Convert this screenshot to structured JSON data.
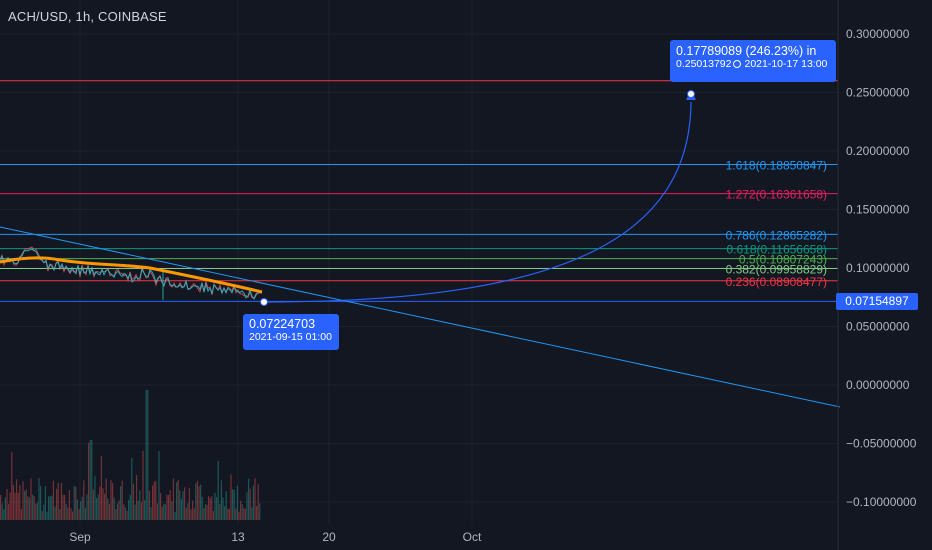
{
  "header": {
    "symbol_title": "ACH/USD, 1h, COINBASE"
  },
  "current_price": {
    "label": "0.07154897",
    "value": 0.07154897,
    "color": "#2962ff"
  },
  "callout_target": {
    "value": "0.17789089 (246.23%) in",
    "price": "0.25013792",
    "date": "2021-10-17 13:00",
    "y": 0.25013792
  },
  "callout_low": {
    "price": "0.07224703",
    "date": "2021-09-15 01:00",
    "y": 0.07224703
  },
  "chart_data": {
    "type": "line",
    "title": "ACH/USD, 1h, COINBASE",
    "ylim": [
      -0.115,
      0.31
    ],
    "x_ticks": [
      "Sep",
      "13",
      "20",
      "Oct"
    ],
    "y_ticks": [
      "0.30000000",
      "0.25000000",
      "0.20000000",
      "0.15000000",
      "0.10000000",
      "0.05000000",
      "0.00000000",
      "−0.05000000",
      "−0.10000000"
    ],
    "y_tick_values": [
      0.3,
      0.25,
      0.2,
      0.15,
      0.1,
      0.05,
      0.0,
      -0.05,
      -0.1
    ],
    "horizontal_levels": [
      {
        "value": 0.26,
        "color": "#f23645"
      },
      {
        "value": 0.1885,
        "color": "#2196f3",
        "label": "1.618(0.18850847)"
      },
      {
        "value": 0.1636,
        "color": "#e91e63",
        "label": "1.272(0.16361658)"
      },
      {
        "value": 0.1287,
        "color": "#2196f3",
        "label": "0.786(0.12865282)"
      },
      {
        "value": 0.1166,
        "color": "#089981",
        "label": "0.618(0.11656658)"
      },
      {
        "value": 0.108,
        "color": "#4caf50",
        "label": "0.5(0.10807243)"
      },
      {
        "value": 0.0996,
        "color": "#81c784",
        "label": "0.382(0.09958829)"
      },
      {
        "value": 0.0891,
        "color": "#f23645",
        "label": "0.236(0.08908477)"
      },
      {
        "value": 0.0715,
        "color": "#2962ff"
      }
    ],
    "price_series_color": "#26c6da",
    "ma_color": "#ff9800",
    "trendline_color": "#2196f3"
  }
}
